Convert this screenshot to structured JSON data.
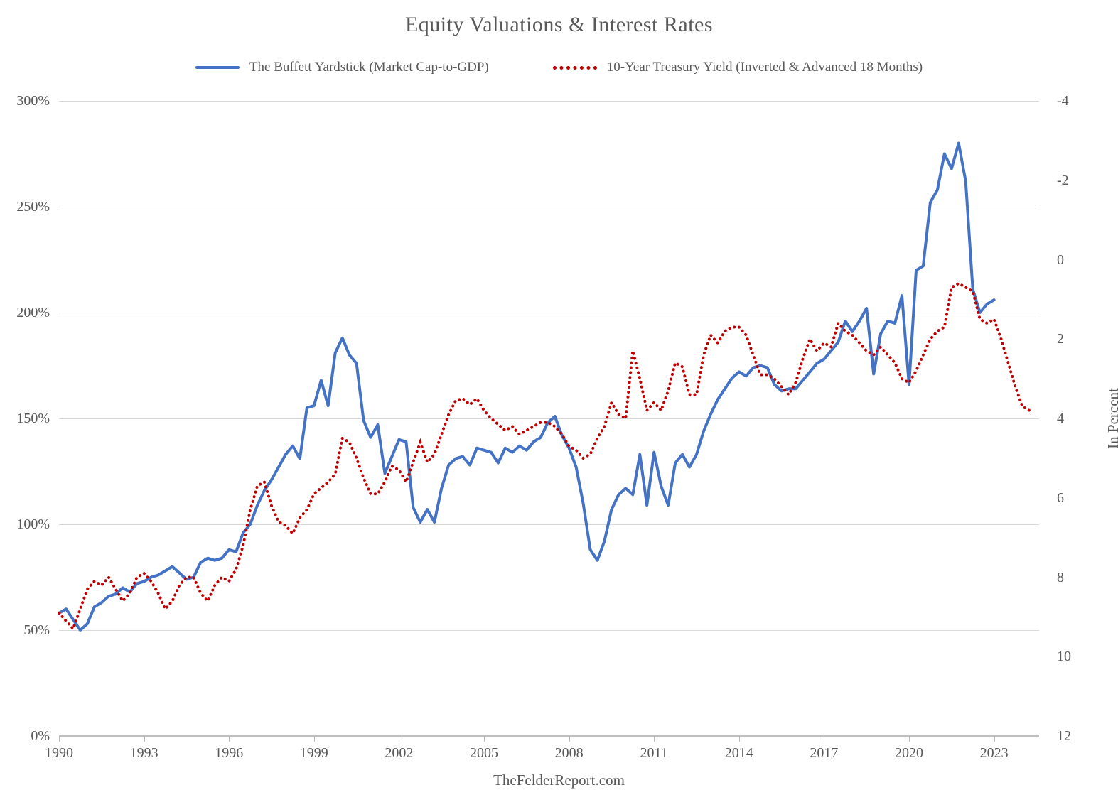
{
  "title": "Equity Valuations & Interest Rates",
  "footer": "TheFelderReport.com",
  "legend": [
    {
      "label": "The Buffett Yardstick (Market Cap-to-GDP)",
      "color": "#4472C4",
      "style": "solid"
    },
    {
      "label": "10-Year Treasury Yield (Inverted & Advanced 18 Months)",
      "color": "#C00000",
      "style": "dotted"
    }
  ],
  "chart_data": {
    "type": "line",
    "title": "Equity Valuations & Interest Rates",
    "grid": "horizontal",
    "legend_position": "top",
    "x_axis": {
      "tick_labels": [
        "1990",
        "1993",
        "1996",
        "1999",
        "2002",
        "2005",
        "2008",
        "2011",
        "2014",
        "2017",
        "2020",
        "2023"
      ],
      "start_year": 1990,
      "years_per_tick": 3
    },
    "left_axis": {
      "ticks": [
        "300%",
        "250%",
        "200%",
        "150%",
        "100%",
        "50%",
        "0%"
      ],
      "min": 0,
      "max": 300,
      "unit": "percent-of-GDP"
    },
    "right_axis": {
      "title": "In Percent",
      "ticks": [
        "-4",
        "-2",
        "0",
        "2",
        "4",
        "6",
        "8",
        "10",
        "12"
      ],
      "min": -4,
      "max": 12,
      "inverted": true
    },
    "series": [
      {
        "name": "The Buffett Yardstick (Market Cap-to-GDP)",
        "color": "#4472C4",
        "style": "solid",
        "axis": "left",
        "x_start": 1990.0,
        "x_step": 0.25,
        "values": [
          58,
          60,
          55,
          50,
          53,
          61,
          63,
          66,
          67,
          70,
          68,
          72,
          73,
          75,
          76,
          78,
          80,
          77,
          74,
          75,
          82,
          84,
          83,
          84,
          88,
          87,
          96,
          100,
          109,
          116,
          121,
          127,
          133,
          137,
          131,
          155,
          156,
          168,
          156,
          181,
          188,
          180,
          176,
          149,
          141,
          147,
          124,
          132,
          140,
          139,
          108,
          101,
          107,
          101,
          117,
          128,
          131,
          132,
          128,
          136,
          135,
          134,
          129,
          136,
          134,
          137,
          135,
          139,
          141,
          148,
          151,
          142,
          136,
          127,
          110,
          88,
          83,
          92,
          107,
          114,
          117,
          114,
          133,
          109,
          134,
          118,
          109,
          129,
          133,
          127,
          133,
          144,
          152,
          159,
          164,
          169,
          172,
          170,
          174,
          175,
          174,
          166,
          163,
          164,
          164,
          168,
          172,
          176,
          178,
          182,
          186,
          196,
          191,
          196,
          202,
          171,
          190,
          196,
          195,
          208,
          166,
          220,
          222,
          252,
          258,
          275,
          268,
          280,
          262,
          211,
          200,
          204,
          206
        ]
      },
      {
        "name": "10-Year Treasury Yield (Inverted & Advanced 18 Months)",
        "color": "#C00000",
        "style": "dotted",
        "axis": "right",
        "x_start": 1990.0,
        "x_step": 0.25,
        "values": [
          8.9,
          9.1,
          9.3,
          8.8,
          8.3,
          8.1,
          8.2,
          8.0,
          8.3,
          8.6,
          8.4,
          8.0,
          7.9,
          8.1,
          8.4,
          8.8,
          8.6,
          8.2,
          8.0,
          8.0,
          8.4,
          8.6,
          8.2,
          8.0,
          8.1,
          7.8,
          7.2,
          6.3,
          5.7,
          5.6,
          6.2,
          6.6,
          6.7,
          6.9,
          6.5,
          6.3,
          5.9,
          5.75,
          5.6,
          5.4,
          4.5,
          4.6,
          5.0,
          5.5,
          5.9,
          5.9,
          5.6,
          5.2,
          5.3,
          5.6,
          5.1,
          4.6,
          5.1,
          4.9,
          4.4,
          3.9,
          3.55,
          3.5,
          3.65,
          3.5,
          3.8,
          4.0,
          4.15,
          4.3,
          4.2,
          4.4,
          4.3,
          4.2,
          4.1,
          4.1,
          4.2,
          4.4,
          4.7,
          4.8,
          5.0,
          4.9,
          4.5,
          4.2,
          3.6,
          3.9,
          4.0,
          2.3,
          3.0,
          3.8,
          3.6,
          3.8,
          3.3,
          2.6,
          2.7,
          3.4,
          3.4,
          2.4,
          1.9,
          2.1,
          1.8,
          1.7,
          1.7,
          1.9,
          2.4,
          2.9,
          2.9,
          3.0,
          3.2,
          3.4,
          3.1,
          2.5,
          2.0,
          2.3,
          2.1,
          2.2,
          1.6,
          1.8,
          1.9,
          2.1,
          2.3,
          2.4,
          2.2,
          2.4,
          2.6,
          3.0,
          3.1,
          2.8,
          2.4,
          2.0,
          1.8,
          1.7,
          0.7,
          0.6,
          0.7,
          0.8,
          1.5,
          1.6,
          1.5,
          2.0,
          2.6,
          3.2,
          3.7,
          3.8
        ]
      }
    ]
  }
}
